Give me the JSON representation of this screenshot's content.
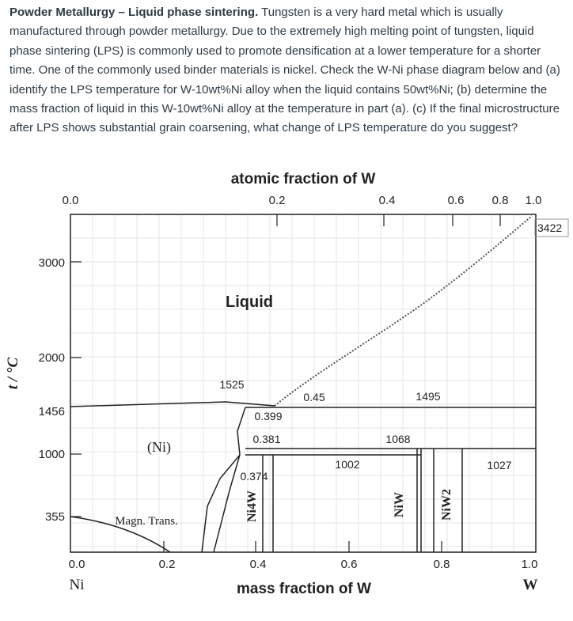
{
  "problem": {
    "bold_heading": "Powder Metallurgy – Liquid phase sintering.",
    "body": " Tungsten is a very hard metal which is usually manufactured through powder metallurgy. Due to the extremely high melting point of tungsten, liquid phase sintering (LPS) is commonly used to promote densification at a lower temperature for a shorter time. One of the commonly used binder materials is nickel. Check the W-Ni phase diagram below and (a) identify the LPS temperature for W-10wt%Ni alloy when the liquid contains 50wt%Ni; (b) determine the mass fraction of liquid in this W-10wt%Ni alloy at the temperature in part (a). (c) If the final microstructure after LPS shows substantial grain coarsening, what change of LPS temperature do you suggest?"
  },
  "diagram": {
    "top_axis_title": "atomic fraction of W",
    "top_ticks": [
      "0.0",
      "0.2",
      "0.4",
      "0.6",
      "0.8",
      "1.0"
    ],
    "bottom_axis_title": "mass fraction of W",
    "bottom_ticks": [
      "0.0",
      "0.2",
      "0.4",
      "0.6",
      "0.8",
      "1.0"
    ],
    "bottom_end_left": "Ni",
    "bottom_end_right": "W",
    "y_axis_title": "t / °C",
    "y_ticks": [
      "3000",
      "2000",
      "1456",
      "1000",
      "355"
    ],
    "top_right_temp": "3422",
    "region_liquid": "Liquid",
    "region_ni": "(Ni)",
    "magn_trans": "Magn. Trans.",
    "phase_ni4w": "Ni4W",
    "phase_niw": "NiW",
    "phase_niw2": "NiW2",
    "temp_1525": "1525",
    "temp_1495": "1495",
    "temp_1068": "1068",
    "temp_1002": "1002",
    "temp_1027": "1027",
    "comp_045": "0.45",
    "comp_0399": "0.399",
    "comp_0381": "0.381",
    "comp_0374": "0.374"
  }
}
